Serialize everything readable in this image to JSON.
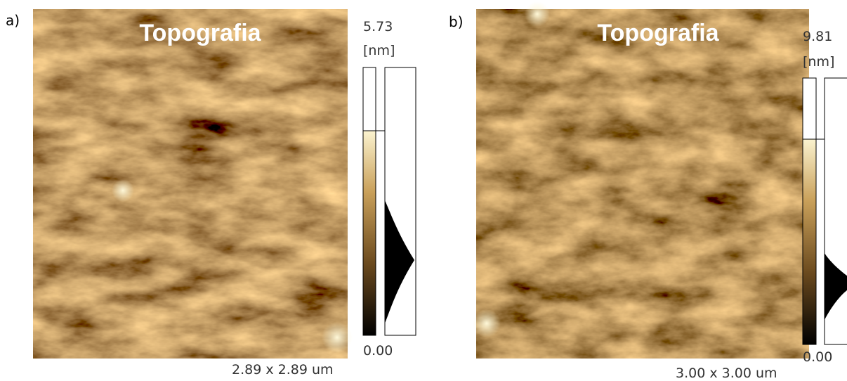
{
  "panels": [
    {
      "label": "a)",
      "title": "Topografia",
      "scale_max": "5.73",
      "unit": "[nm]",
      "scale_min": "0.00",
      "size": "2.89 x 2.89 um"
    },
    {
      "label": "b)",
      "title": "Topografia",
      "scale_max": "9.81",
      "unit": "[nm]",
      "scale_min": "0.00",
      "size": "3.00 x 3.00 um"
    }
  ]
}
